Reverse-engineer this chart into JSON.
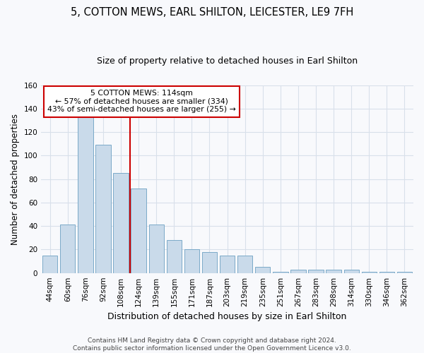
{
  "title_line1": "5, COTTON MEWS, EARL SHILTON, LEICESTER, LE9 7FH",
  "title_line2": "Size of property relative to detached houses in Earl Shilton",
  "xlabel": "Distribution of detached houses by size in Earl Shilton",
  "ylabel": "Number of detached properties",
  "categories": [
    "44sqm",
    "60sqm",
    "76sqm",
    "92sqm",
    "108sqm",
    "124sqm",
    "139sqm",
    "155sqm",
    "171sqm",
    "187sqm",
    "203sqm",
    "219sqm",
    "235sqm",
    "251sqm",
    "267sqm",
    "283sqm",
    "298sqm",
    "314sqm",
    "330sqm",
    "346sqm",
    "362sqm"
  ],
  "values": [
    15,
    41,
    133,
    109,
    85,
    72,
    41,
    28,
    20,
    18,
    15,
    15,
    5,
    1,
    3,
    3,
    3,
    3,
    1,
    1,
    1
  ],
  "bar_color": "#c9daea",
  "bar_edge_color": "#7baac8",
  "vline_x": 4.5,
  "vline_color": "#cc0000",
  "ylim": [
    0,
    160
  ],
  "yticks": [
    0,
    20,
    40,
    60,
    80,
    100,
    120,
    140,
    160
  ],
  "ann_title": "5 COTTON MEWS: 114sqm",
  "ann_line2": "← 57% of detached houses are smaller (334)",
  "ann_line3": "43% of semi-detached houses are larger (255) →",
  "ann_box_fc": "#ffffff",
  "ann_box_ec": "#cc0000",
  "footer_line1": "Contains HM Land Registry data © Crown copyright and database right 2024.",
  "footer_line2": "Contains public sector information licensed under the Open Government Licence v3.0.",
  "bg_color": "#f8f9fc",
  "grid_color": "#d8e0ea",
  "title1_fontsize": 10.5,
  "title2_fontsize": 9,
  "ylabel_fontsize": 8.5,
  "xlabel_fontsize": 9,
  "tick_fontsize": 7.5,
  "ann_fontsize": 7.8,
  "footer_fontsize": 6.5
}
